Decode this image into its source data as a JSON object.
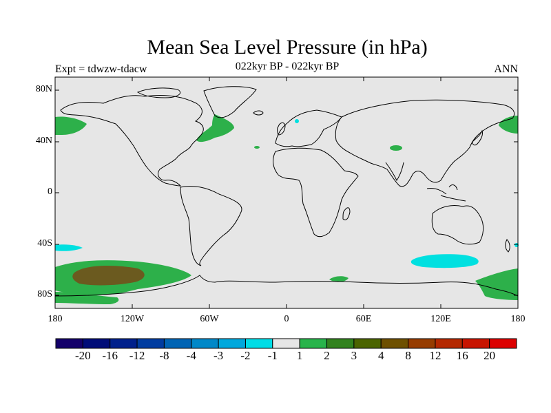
{
  "header": {
    "title": "Mean Sea Level Pressure (in hPa)",
    "expt": "Expt = tdwzw-tdacw",
    "subtitle": "022kyr BP - 022kyr BP",
    "season": "ANN"
  },
  "map": {
    "ocean_color": "#e6e6e6",
    "lat_ticks": [
      "80N",
      "40N",
      "0",
      "40S",
      "80S"
    ],
    "lon_ticks": [
      "180",
      "120W",
      "60W",
      "0",
      "60E",
      "120E",
      "180"
    ]
  },
  "colorbar": {
    "colors": [
      "#14006a",
      "#000c78",
      "#00208c",
      "#003ca0",
      "#0064b4",
      "#0088c8",
      "#00a8dc",
      "#00dce6",
      "#e6e6e6",
      "#28b44b",
      "#32821e",
      "#4b6400",
      "#6e5000",
      "#963c00",
      "#b42800",
      "#c81400",
      "#dc0000"
    ],
    "labels": [
      "-20",
      "-16",
      "-12",
      "-8",
      "-4",
      "-3",
      "-2",
      "-1",
      "1",
      "2",
      "3",
      "4",
      "8",
      "12",
      "16",
      "20"
    ]
  },
  "legend": {
    "positive_region_color": "#2db04a",
    "strong_positive_color": "#6b5a1f",
    "negative_region_color": "#00e0e0",
    "coastline_color": "#000000"
  }
}
